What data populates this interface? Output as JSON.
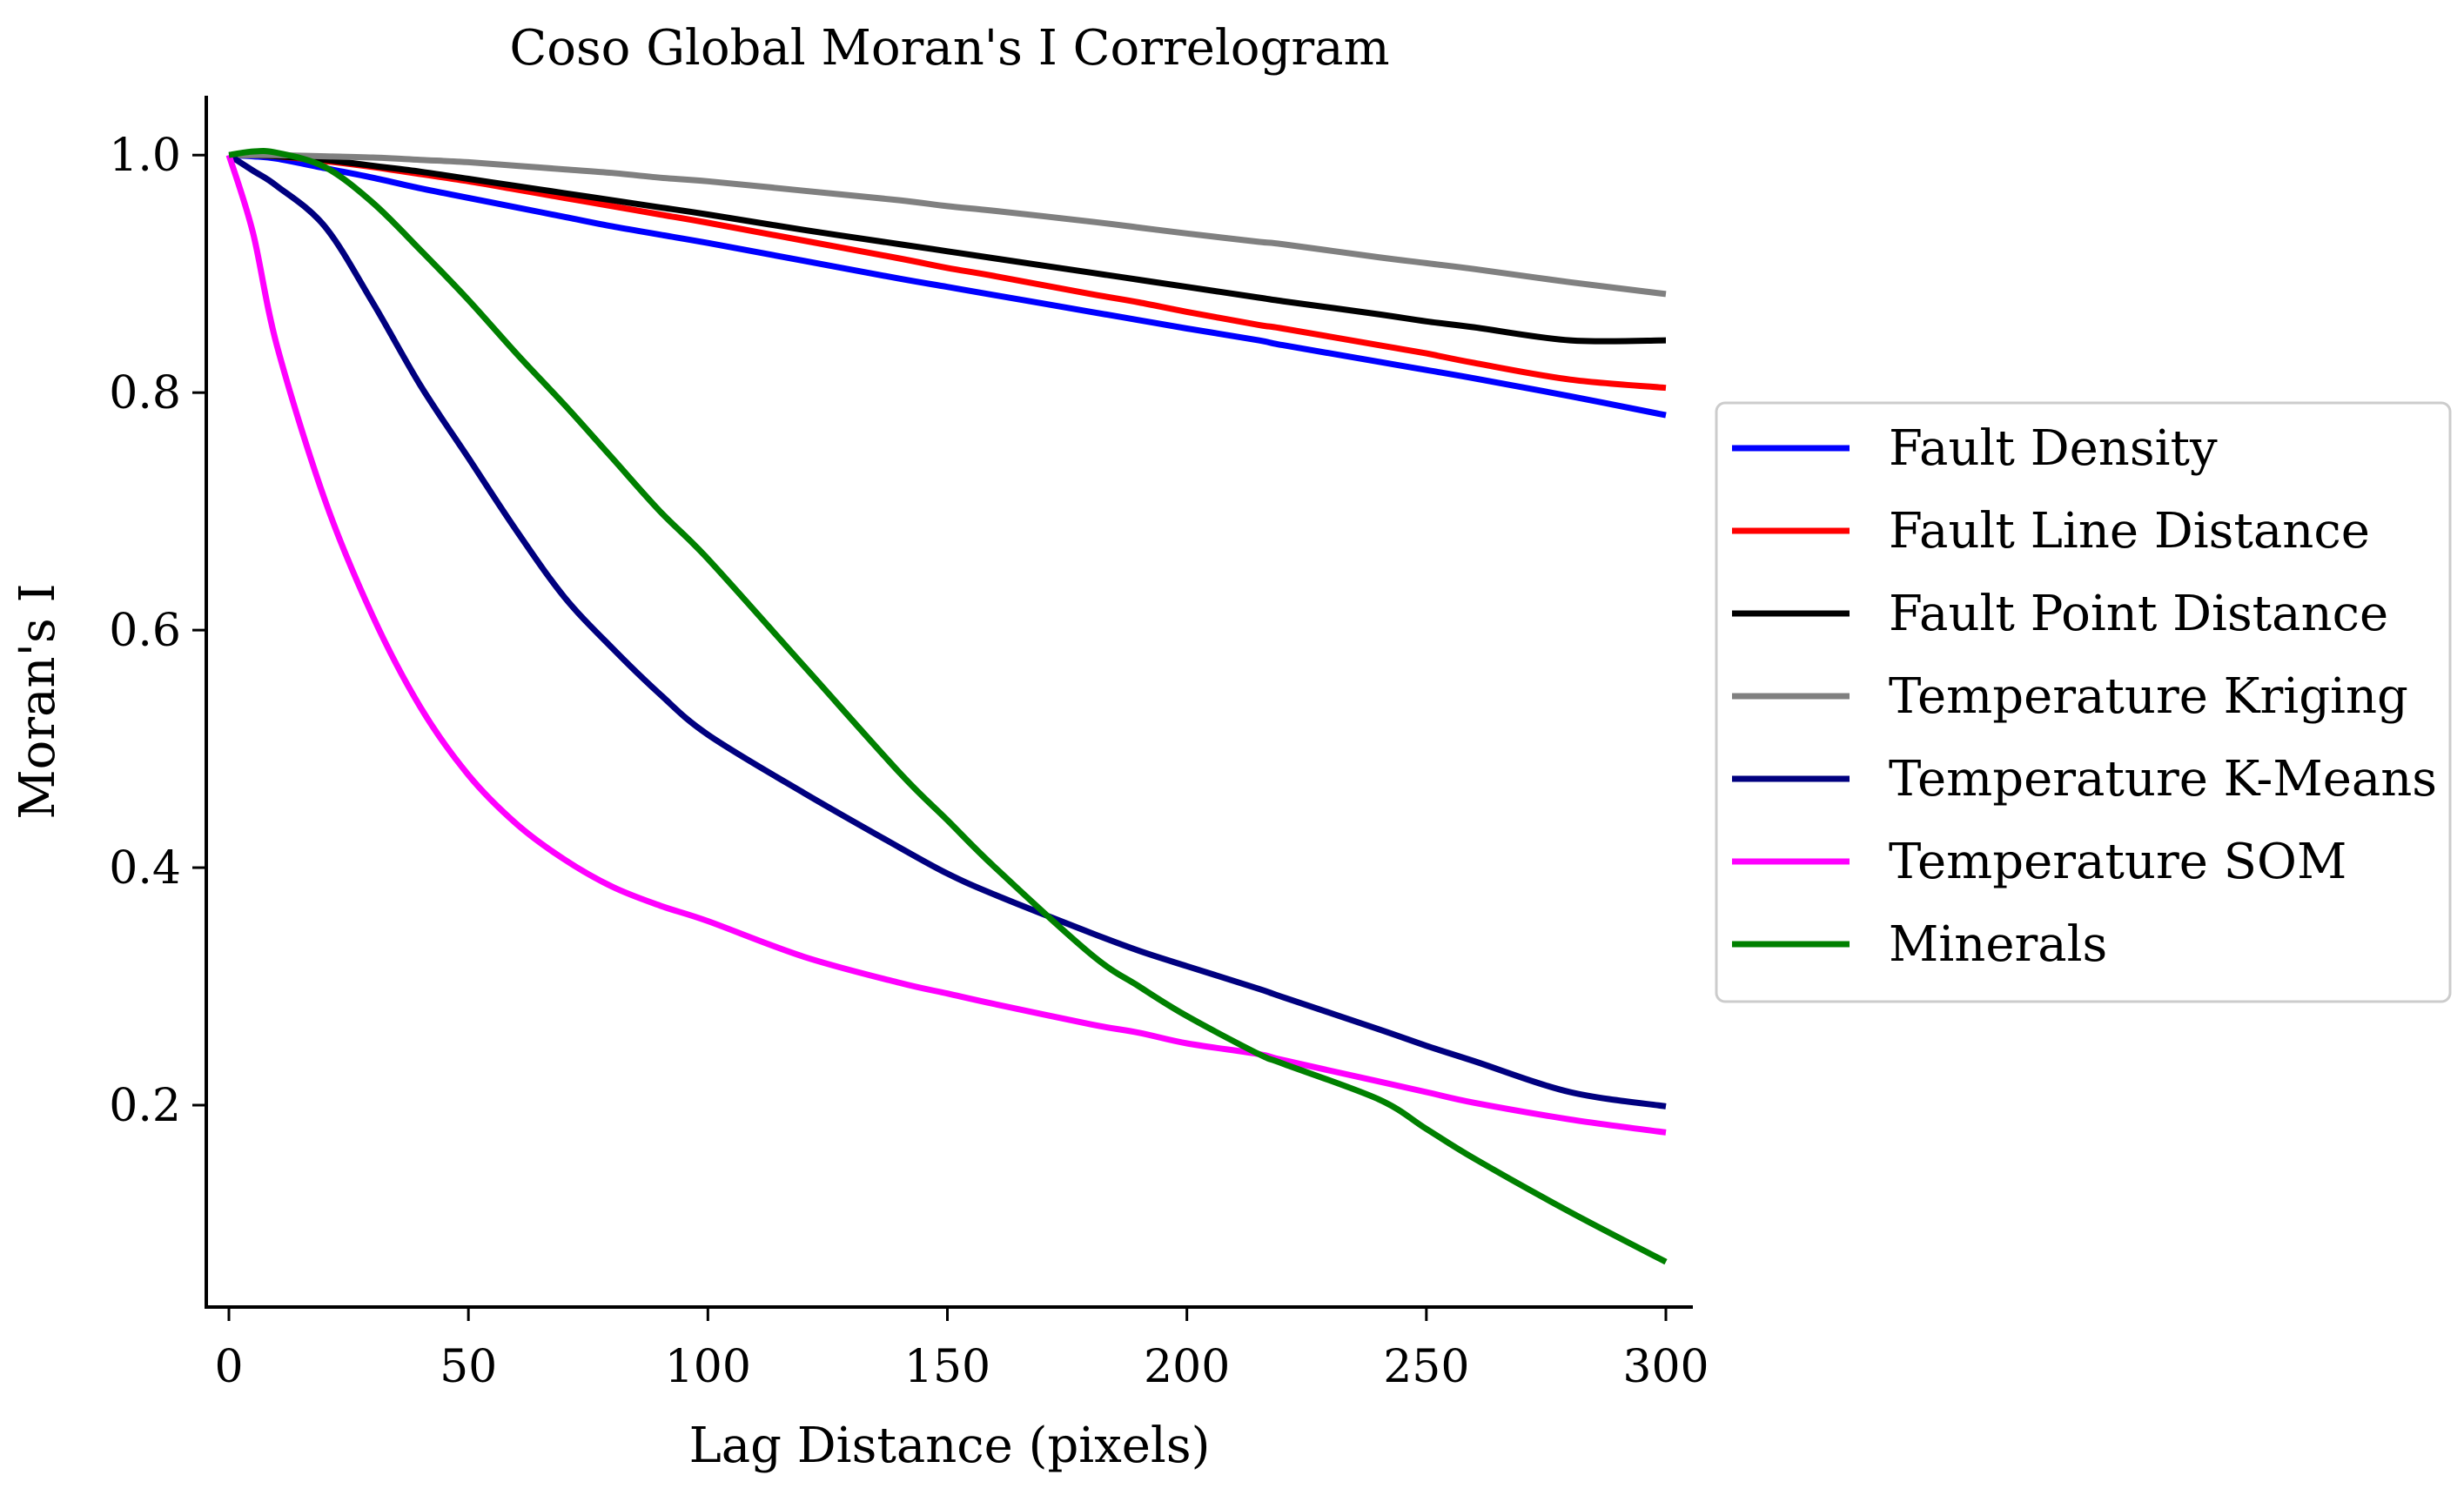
{
  "chart_data": {
    "type": "line",
    "title": "Coso Global Moran's I Correlogram",
    "xlabel": "Lag Distance (pixels)",
    "ylabel": "Moran's I",
    "xlim": [
      -5,
      305
    ],
    "ylim": [
      0.03,
      1.05
    ],
    "xticks": [
      0,
      50,
      100,
      150,
      200,
      250,
      300
    ],
    "yticks": [
      0.2,
      0.4,
      0.6,
      0.8,
      1.0
    ],
    "ytick_labels": [
      "0.2",
      "0.4",
      "0.6",
      "0.8",
      "1.0"
    ],
    "grid": false,
    "legend_position": "center-right outside",
    "x": [
      0,
      5,
      10,
      20,
      30,
      40,
      50,
      60,
      70,
      80,
      90,
      100,
      120,
      140,
      150,
      160,
      180,
      190,
      200,
      215,
      220,
      240,
      250,
      260,
      280,
      300
    ],
    "series": [
      {
        "name": "Fault Density",
        "color": "#0000ff",
        "values": [
          1.0,
          0.999,
          0.997,
          0.989,
          0.981,
          0.972,
          0.964,
          0.956,
          0.948,
          0.94,
          0.933,
          0.926,
          0.911,
          0.896,
          0.889,
          0.882,
          0.868,
          0.861,
          0.854,
          0.844,
          0.84,
          0.826,
          0.819,
          0.812,
          0.797,
          0.781
        ]
      },
      {
        "name": "Fault Line Distance",
        "color": "#ff0000",
        "values": [
          1.0,
          1.0,
          0.999,
          0.995,
          0.99,
          0.984,
          0.978,
          0.971,
          0.964,
          0.957,
          0.95,
          0.943,
          0.928,
          0.913,
          0.905,
          0.898,
          0.883,
          0.876,
          0.868,
          0.857,
          0.854,
          0.84,
          0.833,
          0.825,
          0.811,
          0.804
        ]
      },
      {
        "name": "Fault Point Distance",
        "color": "#000000",
        "values": [
          1.0,
          1.0,
          0.999,
          0.996,
          0.991,
          0.986,
          0.98,
          0.974,
          0.968,
          0.962,
          0.956,
          0.95,
          0.937,
          0.925,
          0.919,
          0.913,
          0.901,
          0.895,
          0.889,
          0.88,
          0.877,
          0.866,
          0.86,
          0.855,
          0.844,
          0.844
        ]
      },
      {
        "name": "Temperature Kriging",
        "color": "#808080",
        "values": [
          1.0,
          1.0,
          1.0,
          0.999,
          0.998,
          0.996,
          0.994,
          0.991,
          0.988,
          0.985,
          0.981,
          0.978,
          0.97,
          0.962,
          0.957,
          0.953,
          0.944,
          0.939,
          0.934,
          0.927,
          0.925,
          0.914,
          0.909,
          0.904,
          0.893,
          0.883
        ]
      },
      {
        "name": "Temperature K-Means",
        "color": "#00007f",
        "values": [
          1.0,
          0.987,
          0.974,
          0.94,
          0.876,
          0.806,
          0.745,
          0.684,
          0.628,
          0.585,
          0.546,
          0.512,
          0.463,
          0.417,
          0.395,
          0.377,
          0.345,
          0.33,
          0.317,
          0.298,
          0.291,
          0.264,
          0.25,
          0.237,
          0.211,
          0.199
        ]
      },
      {
        "name": "Temperature SOM",
        "color": "#ff00ff",
        "values": [
          1.0,
          0.935,
          0.84,
          0.71,
          0.612,
          0.535,
          0.478,
          0.437,
          0.407,
          0.384,
          0.368,
          0.355,
          0.325,
          0.303,
          0.294,
          0.285,
          0.268,
          0.261,
          0.252,
          0.243,
          0.238,
          0.22,
          0.211,
          0.202,
          0.188,
          0.177
        ]
      },
      {
        "name": "Minerals",
        "color": "#008000",
        "values": [
          1.0,
          1.003,
          1.002,
          0.99,
          0.96,
          0.92,
          0.878,
          0.833,
          0.79,
          0.745,
          0.7,
          0.66,
          0.57,
          0.48,
          0.44,
          0.4,
          0.327,
          0.3,
          0.275,
          0.243,
          0.235,
          0.205,
          0.18,
          0.155,
          0.11,
          0.068
        ]
      }
    ]
  }
}
